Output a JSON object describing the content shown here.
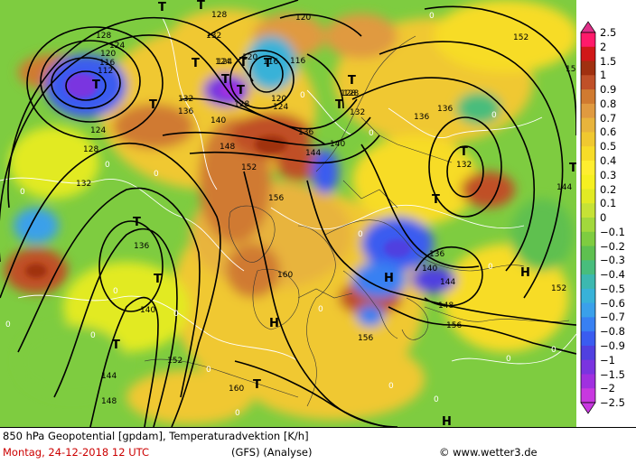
{
  "caption": {
    "title": "850 hPa Geopotential [gpdam], Temperaturadvektion [K/h]",
    "date": "Montag, 24-12-2018  12 UTC",
    "model": "(GFS)   (Analyse)",
    "credit": "www.wetter3.de"
  },
  "legend": {
    "labels": [
      "2.5",
      "2",
      "1.5",
      "1",
      "0.9",
      "0.8",
      "0.7",
      "0.6",
      "0.5",
      "0.4",
      "0.3",
      "0.2",
      "0.1",
      "0",
      "−0.1",
      "−0.2",
      "−0.3",
      "−0.4",
      "−0.5",
      "−0.6",
      "−0.7",
      "−0.8",
      "−0.9",
      "−1",
      "−1.5",
      "−2",
      "−2.5"
    ],
    "colors": [
      "#e0308a",
      "#ff1a6a",
      "#d01818",
      "#a03010",
      "#c05028",
      "#d07a30",
      "#e09a40",
      "#e8b43c",
      "#f0c830",
      "#f7dc28",
      "#ffee30",
      "#f6f020",
      "#e2ea24",
      "#c6e236",
      "#a2d83c",
      "#7ecc40",
      "#5ec050",
      "#48bd7c",
      "#3cb8b0",
      "#38b2d8",
      "#3aa0ea",
      "#3880f2",
      "#3a5cf0",
      "#5040e0",
      "#7a34e0",
      "#a030e0",
      "#c838e0"
    ]
  },
  "map": {
    "pressure_systems": [
      {
        "label": "T"
      },
      {
        "label": "T"
      },
      {
        "label": "T"
      },
      {
        "label": "T"
      },
      {
        "label": "T"
      },
      {
        "label": "T"
      },
      {
        "label": "T"
      },
      {
        "label": "T"
      },
      {
        "label": "T"
      },
      {
        "label": "T"
      },
      {
        "label": "T"
      },
      {
        "label": "T"
      },
      {
        "label": "T"
      },
      {
        "label": "T"
      },
      {
        "label": "T"
      },
      {
        "label": "T"
      },
      {
        "label": "T"
      },
      {
        "label": "H"
      },
      {
        "label": "H"
      },
      {
        "label": "H"
      },
      {
        "label": "H"
      }
    ],
    "contour_labels": [
      "128",
      "132",
      "120",
      "128",
      "124",
      "120",
      "116",
      "112",
      "116",
      "124",
      "128",
      "132",
      "124",
      "120",
      "116",
      "120",
      "124",
      "128",
      "132",
      "136",
      "140",
      "148",
      "152",
      "144",
      "140",
      "136",
      "132",
      "136",
      "128",
      "156",
      "160",
      "140",
      "144",
      "148",
      "152",
      "156",
      "160",
      "136",
      "140",
      "144",
      "148",
      "152",
      "156",
      "136",
      "144",
      "152",
      "15",
      "132",
      "136",
      "124",
      "128"
    ],
    "zero_labels": [
      "0",
      "0",
      "0",
      "0",
      "0",
      "0",
      "0",
      "0",
      "0",
      "0",
      "0",
      "0",
      "0",
      "0",
      "0",
      "0",
      "0",
      "0",
      "0",
      "0"
    ]
  }
}
